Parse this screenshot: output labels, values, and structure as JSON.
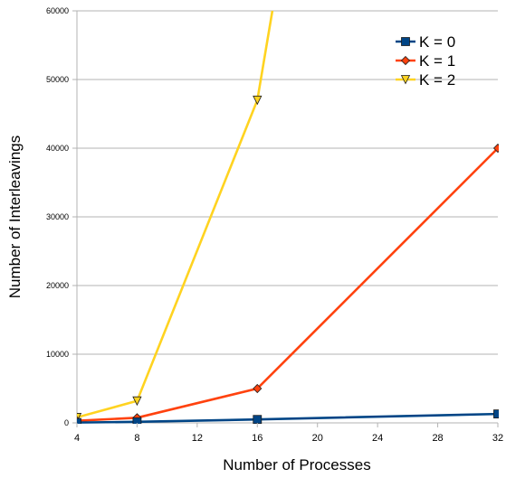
{
  "chart_data": {
    "type": "line",
    "title": "",
    "xlabel": "Number of Processes",
    "ylabel": "Number of Interleavings",
    "xlim": [
      4,
      32
    ],
    "ylim": [
      0,
      60000
    ],
    "xticks": [
      "4",
      "8",
      "12",
      "16",
      "20",
      "24",
      "28",
      "32"
    ],
    "yticks": [
      "0",
      "10000",
      "20000",
      "30000",
      "40000",
      "50000",
      "60000"
    ],
    "grid": "horizontal",
    "legend_position": "top-right",
    "series": [
      {
        "name": "K = 0",
        "marker": "square",
        "color": "#004586",
        "points": [
          [
            4,
            50
          ],
          [
            8,
            150
          ],
          [
            16,
            500
          ],
          [
            32,
            1300
          ]
        ]
      },
      {
        "name": "K = 1",
        "marker": "diamond",
        "color": "#ff420e",
        "points": [
          [
            4,
            300
          ],
          [
            8,
            750
          ],
          [
            16,
            5000
          ],
          [
            32,
            40000
          ]
        ]
      },
      {
        "name": "K = 2",
        "marker": "triangle-down",
        "color": "#ffd320",
        "points": [
          [
            4,
            800
          ],
          [
            8,
            3200
          ],
          [
            16,
            47000
          ],
          [
            17,
            60000
          ]
        ]
      }
    ]
  }
}
